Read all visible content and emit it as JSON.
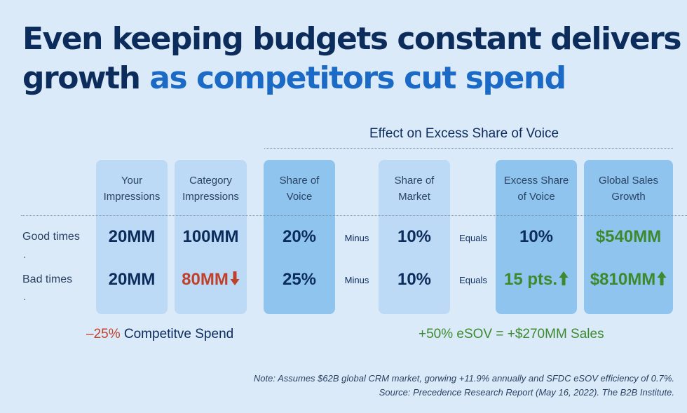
{
  "title": {
    "line1": "Even keeping budgets constant delivers",
    "line2_plain": "growth ",
    "line2_highlight": "as competitors cut spend"
  },
  "effect_label": "Effect on Excess Share of Voice",
  "columns": {
    "your_impressions": "Your Impressions",
    "category_impressions": "Category Impressions",
    "share_of_voice": "Share of Voice",
    "share_of_market": "Share of Market",
    "excess_share_of_voice": "Excess Share of Voice",
    "global_sales_growth": "Global Sales Growth"
  },
  "rows": {
    "good": {
      "label": "Good times",
      "your_impressions": "20MM",
      "category_impressions": "100MM",
      "share_of_voice": "20%",
      "op1": "Minus",
      "share_of_market": "10%",
      "op2": "Equals",
      "excess_share_of_voice": "10%",
      "global_sales_growth": "$540MM"
    },
    "bad": {
      "label": "Bad times",
      "your_impressions": "20MM",
      "category_impressions": "80MM",
      "share_of_voice": "25%",
      "op1": "Minus",
      "share_of_market": "10%",
      "op2": "Equals",
      "excess_share_of_voice": "15 pts.",
      "global_sales_growth": "$810MM"
    }
  },
  "bottom": {
    "left_pct": "–25%",
    "left_text": " Competitve Spend",
    "right_text": "+50% eSOV = +$270MM Sales"
  },
  "note": {
    "line1": "Note: Assumes $62B global CRM market, gorwing +11.9% annually and SFDC eSOV efficiency of 0.7%.",
    "line2": "Source: Precedence Research Report (May 16, 2022). The B2B Institute."
  },
  "colors": {
    "background": "#dbeaf9",
    "title_dark": "#0c2c5c",
    "title_highlight": "#1a6ac6",
    "column_light": "#bcdaf5",
    "column_dark": "#8fc4ef",
    "decrease_red": "#c0412b",
    "growth_green": "#3d8a2e"
  },
  "icons": {
    "decrease": "arrow-down-icon",
    "increase": "arrow-up-icon"
  }
}
